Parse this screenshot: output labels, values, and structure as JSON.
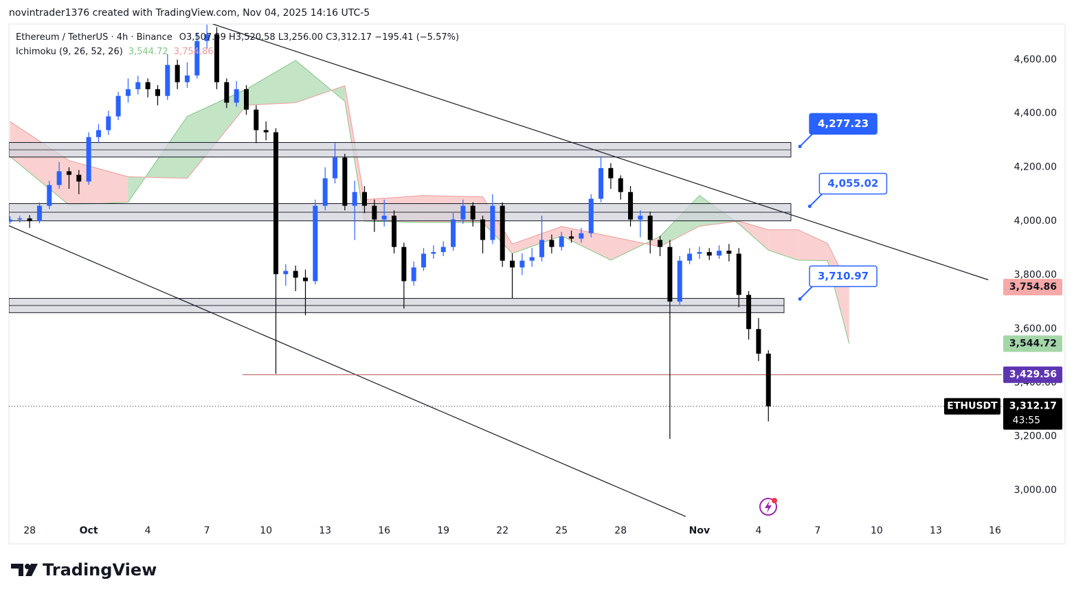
{
  "header": {
    "credit": "novintrader1376 created with TradingView.com, Nov 04, 2025 14:16 UTC-5"
  },
  "chart_data": {
    "type": "candlestick",
    "symbol_line": "Ethereum / TetherUS · 4h · Binance",
    "ohlc_line": "O3,507.59 H3,520.58 L3,256.00 C3,312.17 −195.41 (−5.57%)",
    "up_color": "#2962ff",
    "down_color": "#000000",
    "x": [
      -1,
      -0.5,
      0,
      0.5,
      1,
      1.5,
      2,
      2.5,
      3,
      3.5,
      4,
      4.5,
      5,
      5.5,
      6,
      6.5,
      7,
      7.5,
      8,
      8.5,
      9,
      9.5,
      10,
      10.5,
      11,
      11.5,
      12,
      12.5,
      13,
      13.5,
      14,
      14.5,
      15,
      15.5,
      16,
      16.5,
      17,
      17.5,
      18,
      18.5,
      19,
      19.5,
      20,
      20.5,
      21,
      21.5,
      22,
      22.5,
      23,
      23.5,
      24,
      24.5,
      25,
      25.5,
      26,
      26.5,
      27,
      27.5,
      28,
      28.5,
      29,
      29.5,
      30,
      30.5,
      31,
      31.5,
      32,
      32.5,
      33,
      33.5,
      34,
      34.5,
      35,
      35.5,
      36,
      36.5,
      37,
      37.5
    ],
    "open": [
      3998,
      4006,
      4010,
      4000,
      4057,
      4134,
      4185,
      4172,
      4147,
      4312,
      4338,
      4389,
      4465,
      4490,
      4516,
      4490,
      4465,
      4580,
      4516,
      4541,
      4669,
      4694,
      4516,
      4440,
      4490,
      4414,
      4338,
      4330,
      3803,
      3815,
      3790,
      3777,
      4057,
      4159,
      4236,
      4057,
      4108,
      4057,
      4006,
      4020,
      3904,
      3777,
      3828,
      3879,
      3885,
      3904,
      4006,
      4057,
      4006,
      3930,
      4057,
      3853,
      3828,
      3853,
      3866,
      3930,
      3904,
      3943,
      3935,
      3955,
      4083,
      4197,
      4159,
      4108,
      4006,
      4020,
      3930,
      3904,
      3701,
      3853,
      3879,
      3885,
      3872,
      3890,
      3879,
      3726,
      3599,
      3507.59
    ],
    "high": [
      4018,
      4020,
      4022,
      4070,
      4150,
      4220,
      4200,
      4190,
      4330,
      4360,
      4410,
      4480,
      4530,
      4540,
      4530,
      4505,
      4620,
      4600,
      4590,
      4700,
      4730,
      4720,
      4530,
      4520,
      4505,
      4430,
      4370,
      4345,
      3840,
      3835,
      3820,
      4080,
      4200,
      4290,
      4250,
      4150,
      4130,
      4080,
      4080,
      4040,
      3920,
      3850,
      3900,
      3910,
      3925,
      4030,
      4080,
      4070,
      4020,
      4100,
      4070,
      3880,
      3880,
      3900,
      4020,
      3950,
      3960,
      3965,
      3975,
      4100,
      4240,
      4215,
      4170,
      4130,
      4040,
      4035,
      3945,
      3930,
      3870,
      3900,
      3905,
      3900,
      3910,
      3915,
      3900,
      3740,
      3640,
      3520.58
    ],
    "low": [
      3990,
      3995,
      3975,
      3992,
      4045,
      4120,
      4120,
      4100,
      4135,
      4290,
      4320,
      4375,
      4440,
      4470,
      4460,
      4430,
      4450,
      4490,
      4495,
      4530,
      4640,
      4490,
      4420,
      4425,
      4395,
      4290,
      4300,
      3433,
      3760,
      3740,
      3650,
      3765,
      4040,
      4140,
      4040,
      3930,
      4030,
      3960,
      3980,
      3880,
      3675,
      3760,
      3815,
      3860,
      3870,
      3890,
      3990,
      3980,
      3880,
      3915,
      3830,
      3713,
      3800,
      3830,
      3850,
      3880,
      3890,
      3920,
      3920,
      3940,
      4070,
      4120,
      4080,
      3980,
      3940,
      3880,
      3870,
      3191,
      3690,
      3840,
      3860,
      3855,
      3860,
      3850,
      3680,
      3560,
      3480,
      3256
    ],
    "close": [
      4006,
      4010,
      4000,
      4057,
      4134,
      4185,
      4172,
      4147,
      4312,
      4338,
      4389,
      4465,
      4490,
      4516,
      4490,
      4465,
      4580,
      4516,
      4541,
      4669,
      4694,
      4516,
      4440,
      4490,
      4414,
      4338,
      4330,
      3803,
      3815,
      3790,
      3777,
      4057,
      4159,
      4236,
      4057,
      4108,
      4057,
      4006,
      4020,
      3904,
      3777,
      3828,
      3879,
      3885,
      3904,
      4006,
      4057,
      4006,
      3930,
      4057,
      3853,
      3828,
      3853,
      3866,
      3930,
      3904,
      3943,
      3935,
      3955,
      4083,
      4197,
      4159,
      4108,
      4006,
      4020,
      3930,
      3904,
      3701,
      3853,
      3879,
      3885,
      3872,
      3890,
      3879,
      3726,
      3599,
      3507.59,
      3312.17
    ],
    "indicator": {
      "name": "Ichimoku (9, 26, 52, 26)",
      "span_a_label": "3,544.72",
      "span_b_label": "3,754.86",
      "up_color": "#a5d6a7",
      "down_color": "#f8b9b7",
      "x": [
        -1,
        2,
        5,
        8,
        11,
        13.5,
        16,
        17,
        20,
        23,
        24.5,
        27,
        29.5,
        32,
        34,
        36,
        37.5,
        39,
        40.5,
        41.6
      ],
      "span_a": [
        4240,
        4060,
        4070,
        4389,
        4490,
        4597,
        4445,
        4000,
        3995,
        3995,
        3880,
        3945,
        3855,
        3943,
        4095,
        3990,
        3892,
        3855,
        3853,
        3544.72
      ],
      "span_b": [
        4370,
        4225,
        4165,
        4159,
        4430,
        4440,
        4503,
        4080,
        4095,
        4090,
        3915,
        3980,
        3943,
        3905,
        3981,
        4000,
        3968,
        3968,
        3917,
        3754.86
      ]
    },
    "xlim": [
      -1.05,
      49.35
    ],
    "xticks": [
      {
        "value": 0,
        "label": "28"
      },
      {
        "value": 3,
        "label": "Oct"
      },
      {
        "value": 6,
        "label": "4"
      },
      {
        "value": 9,
        "label": "7"
      },
      {
        "value": 12,
        "label": "10"
      },
      {
        "value": 15,
        "label": "13"
      },
      {
        "value": 18,
        "label": "16"
      },
      {
        "value": 21,
        "label": "19"
      },
      {
        "value": 24,
        "label": "22"
      },
      {
        "value": 27,
        "label": "25"
      },
      {
        "value": 30,
        "label": "28"
      },
      {
        "value": 34,
        "label": "Nov"
      },
      {
        "value": 37,
        "label": "4"
      },
      {
        "value": 40,
        "label": "7"
      },
      {
        "value": 43,
        "label": "10"
      },
      {
        "value": 46,
        "label": "13"
      },
      {
        "value": 49,
        "label": "16"
      }
    ],
    "ylim": [
      2883,
      4732
    ],
    "yticks": [
      {
        "value": 3000,
        "label": "3,000.00"
      },
      {
        "value": 3200,
        "label": "3,200.00"
      },
      {
        "value": 3400,
        "label": "3,400.00"
      },
      {
        "value": 3600,
        "label": "3,600.00"
      },
      {
        "value": 3800,
        "label": "3,800.00"
      },
      {
        "value": 4000,
        "label": "4,000.00"
      },
      {
        "value": 4200,
        "label": "4,200.00"
      },
      {
        "value": 4400,
        "label": "4,400.00"
      },
      {
        "value": 4600,
        "label": "4,600.00"
      }
    ],
    "zones": [
      {
        "low": 4238,
        "high": 4292
      },
      {
        "low": 4001,
        "high": 4065
      },
      {
        "low": 3660,
        "high": 3713
      }
    ],
    "trendlines": [
      {
        "x": [
          -1.05,
          33.3
        ],
        "y": [
          3983,
          2903
        ]
      },
      {
        "x": [
          9.3,
          48.66
        ],
        "y": [
          4732,
          3782
        ]
      }
    ],
    "level_start": 10.8,
    "annotations": [
      {
        "x": 39.1,
        "value": 4277.23,
        "label": "4,277.23",
        "filled": true
      },
      {
        "x": 39.6,
        "value": 4055.02,
        "label": "4,055.02",
        "filled": false
      },
      {
        "x": 39.1,
        "value": 3710.97,
        "label": "3,710.97",
        "filled": false
      }
    ],
    "price_tags": [
      {
        "value": 3754.86,
        "label": "3,754.86",
        "color": "#f7a9a7"
      },
      {
        "value": 3544.72,
        "label": "3,544.72",
        "color": "#a5d6a7"
      },
      {
        "value": 3429.56,
        "label": "3,429.56",
        "color": "#5e35b1"
      },
      {
        "value": 3312.17,
        "label": "3,312.17",
        "color": "#000000"
      }
    ],
    "symbol": "ETHUSDT",
    "countdown": "43:55"
  },
  "footer": {
    "brand": "TradingView"
  }
}
